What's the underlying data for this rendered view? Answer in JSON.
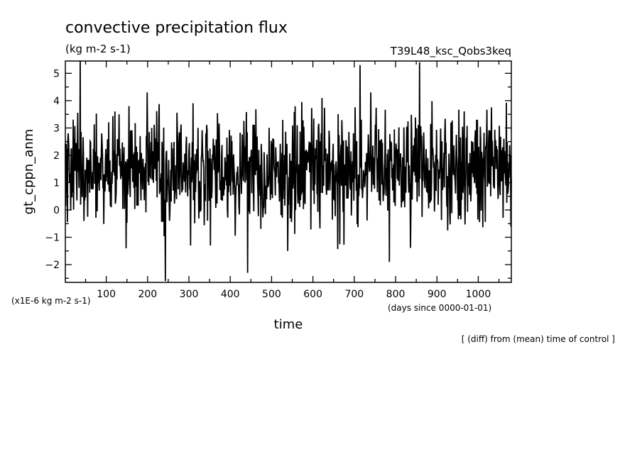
{
  "chart_data": {
    "type": "line",
    "title": "convective precipitation flux",
    "units": "(kg m-2 s-1)",
    "run_label": "T39L48_ksc_Qobs3keq",
    "ylabel": "gt_cppn_anm",
    "xlabel": "time",
    "xunits": "(days since 0000-01-01)",
    "yscale_note": "(x1E-6 kg m-2 s-1)",
    "footnote": "[ (diff) from (mean) time of control ]",
    "xlim": [
      1,
      1080
    ],
    "ylim": [
      -2.65,
      5.45
    ],
    "xticks": [
      100,
      200,
      300,
      400,
      500,
      600,
      700,
      800,
      900,
      1000
    ],
    "yticks": [
      -2,
      -1,
      0,
      1,
      2,
      3,
      4,
      5
    ],
    "grid": false,
    "series": [
      {
        "mean": 1.5,
        "spread": 1.0,
        "clip": [
          -1.5,
          4.3
        ],
        "spikes": [
          [
            37,
            5.45
          ],
          [
            243,
            -2.6
          ],
          [
            442,
            -2.3
          ],
          [
            714,
            5.3
          ],
          [
            785,
            -1.9
          ],
          [
            858,
            5.4
          ],
          [
            665,
            -1.25
          ],
          [
            148,
            -1.4
          ],
          [
            304,
            -1.3
          ],
          [
            352,
            -1.3
          ]
        ],
        "values": []
      }
    ]
  }
}
